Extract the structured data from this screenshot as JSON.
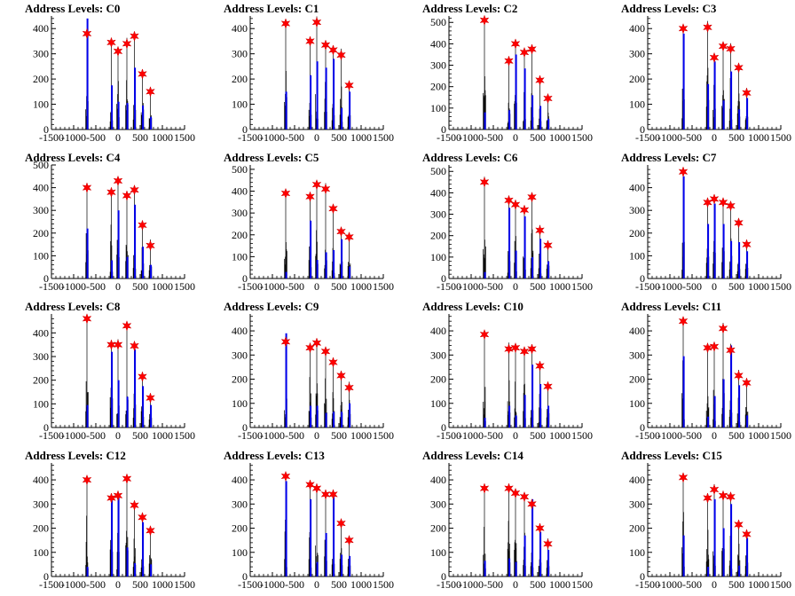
{
  "chart_data": [
    {
      "type": "bar",
      "title": "Address Levels: C0",
      "xlim": [
        -1500,
        1500
      ],
      "ylim": [
        0,
        450
      ],
      "x_ticks": [
        -1500,
        -1000,
        -500,
        0,
        500,
        1000,
        1500
      ],
      "y_ticks": [
        0,
        100,
        200,
        300,
        400
      ],
      "peaks": [
        {
          "x": -700,
          "y": 380,
          "blue": 440
        },
        {
          "x": -150,
          "y": 345,
          "blue": 175
        },
        {
          "x": 0,
          "y": 310,
          "blue": 110
        },
        {
          "x": 200,
          "y": 340,
          "blue": 105
        },
        {
          "x": 370,
          "y": 370,
          "blue": 245
        },
        {
          "x": 550,
          "y": 220,
          "blue": 95
        },
        {
          "x": 730,
          "y": 150,
          "blue": 50
        }
      ]
    },
    {
      "type": "bar",
      "title": "Address Levels: C1",
      "xlim": [
        -1500,
        1500
      ],
      "ylim": [
        0,
        450
      ],
      "x_ticks": [
        -1500,
        -1000,
        -500,
        0,
        500,
        1000,
        1500
      ],
      "y_ticks": [
        0,
        100,
        200,
        300,
        400
      ],
      "peaks": [
        {
          "x": -700,
          "y": 420,
          "blue": 150
        },
        {
          "x": -150,
          "y": 350,
          "blue": 215
        },
        {
          "x": 0,
          "y": 425,
          "blue": 270
        },
        {
          "x": 200,
          "y": 335,
          "blue": 245
        },
        {
          "x": 370,
          "y": 315,
          "blue": 280
        },
        {
          "x": 550,
          "y": 295,
          "blue": 85
        },
        {
          "x": 730,
          "y": 175,
          "blue": 150
        }
      ]
    },
    {
      "type": "bar",
      "title": "Address Levels: C2",
      "xlim": [
        -1500,
        1500
      ],
      "ylim": [
        0,
        530
      ],
      "x_ticks": [
        -1500,
        -1000,
        -500,
        0,
        500,
        1000,
        1500
      ],
      "y_ticks": [
        0,
        100,
        200,
        300,
        400,
        500
      ],
      "peaks": [
        {
          "x": -700,
          "y": 510,
          "blue": 80
        },
        {
          "x": -150,
          "y": 320,
          "blue": 90
        },
        {
          "x": 0,
          "y": 400,
          "blue": 350
        },
        {
          "x": 200,
          "y": 360,
          "blue": 285
        },
        {
          "x": 370,
          "y": 375,
          "blue": 160
        },
        {
          "x": 550,
          "y": 230,
          "blue": 110
        },
        {
          "x": 730,
          "y": 145,
          "blue": 50
        }
      ]
    },
    {
      "type": "bar",
      "title": "Address Levels: C3",
      "xlim": [
        -1500,
        1500
      ],
      "ylim": [
        0,
        450
      ],
      "x_ticks": [
        -1500,
        -1000,
        -500,
        0,
        500,
        1000,
        1500
      ],
      "y_ticks": [
        0,
        100,
        200,
        300,
        400
      ],
      "peaks": [
        {
          "x": -700,
          "y": 400,
          "blue": 380
        },
        {
          "x": -150,
          "y": 405,
          "blue": 180
        },
        {
          "x": 0,
          "y": 285,
          "blue": 270
        },
        {
          "x": 200,
          "y": 330,
          "blue": 115
        },
        {
          "x": 370,
          "y": 320,
          "blue": 230
        },
        {
          "x": 550,
          "y": 245,
          "blue": 80
        },
        {
          "x": 730,
          "y": 145,
          "blue": 125
        }
      ]
    },
    {
      "type": "bar",
      "title": "Address Levels: C4",
      "xlim": [
        -1500,
        1500
      ],
      "ylim": [
        0,
        500
      ],
      "x_ticks": [
        -1500,
        -1000,
        -500,
        0,
        500,
        1000,
        1500
      ],
      "y_ticks": [
        0,
        100,
        200,
        300,
        400,
        500
      ],
      "peaks": [
        {
          "x": -700,
          "y": 400,
          "blue": 220
        },
        {
          "x": -150,
          "y": 380,
          "blue": 80
        },
        {
          "x": 0,
          "y": 430,
          "blue": 300
        },
        {
          "x": 200,
          "y": 365,
          "blue": 95
        },
        {
          "x": 370,
          "y": 390,
          "blue": 325
        },
        {
          "x": 550,
          "y": 235,
          "blue": 140
        },
        {
          "x": 730,
          "y": 145,
          "blue": 60
        }
      ]
    },
    {
      "type": "bar",
      "title": "Address Levels: C5",
      "xlim": [
        -1500,
        1500
      ],
      "ylim": [
        0,
        520
      ],
      "x_ticks": [
        -1500,
        -1000,
        -500,
        0,
        500,
        1000,
        1500
      ],
      "y_ticks": [
        0,
        100,
        200,
        300,
        400,
        500
      ],
      "peaks": [
        {
          "x": -700,
          "y": 390,
          "blue": 30
        },
        {
          "x": -150,
          "y": 375,
          "blue": 265
        },
        {
          "x": 0,
          "y": 430,
          "blue": 85
        },
        {
          "x": 200,
          "y": 410,
          "blue": 120
        },
        {
          "x": 370,
          "y": 320,
          "blue": 130
        },
        {
          "x": 550,
          "y": 215,
          "blue": 180
        },
        {
          "x": 730,
          "y": 190,
          "blue": 55
        }
      ]
    },
    {
      "type": "bar",
      "title": "Address Levels: C6",
      "xlim": [
        -1500,
        1500
      ],
      "ylim": [
        0,
        530
      ],
      "x_ticks": [
        -1500,
        -1000,
        -500,
        0,
        500,
        1000,
        1500
      ],
      "y_ticks": [
        0,
        100,
        200,
        300,
        400,
        500
      ],
      "peaks": [
        {
          "x": -700,
          "y": 450,
          "blue": 30
        },
        {
          "x": -150,
          "y": 365,
          "blue": 330
        },
        {
          "x": 0,
          "y": 345,
          "blue": 130
        },
        {
          "x": 200,
          "y": 320,
          "blue": 290
        },
        {
          "x": 370,
          "y": 380,
          "blue": 100
        },
        {
          "x": 550,
          "y": 225,
          "blue": 185
        },
        {
          "x": 730,
          "y": 155,
          "blue": 80
        }
      ]
    },
    {
      "type": "bar",
      "title": "Address Levels: C7",
      "xlim": [
        -1500,
        1500
      ],
      "ylim": [
        0,
        500
      ],
      "x_ticks": [
        -1500,
        -1000,
        -500,
        0,
        500,
        1000,
        1500
      ],
      "y_ticks": [
        0,
        100,
        200,
        300,
        400
      ],
      "peaks": [
        {
          "x": -700,
          "y": 470,
          "blue": 450
        },
        {
          "x": -150,
          "y": 335,
          "blue": 240
        },
        {
          "x": 0,
          "y": 350,
          "blue": 330
        },
        {
          "x": 200,
          "y": 335,
          "blue": 240
        },
        {
          "x": 370,
          "y": 320,
          "blue": 165
        },
        {
          "x": 550,
          "y": 245,
          "blue": 160
        },
        {
          "x": 730,
          "y": 150,
          "blue": 120
        }
      ]
    },
    {
      "type": "bar",
      "title": "Address Levels: C8",
      "xlim": [
        -1500,
        1500
      ],
      "ylim": [
        0,
        480
      ],
      "x_ticks": [
        -1500,
        -1000,
        -500,
        0,
        500,
        1000,
        1500
      ],
      "y_ticks": [
        0,
        100,
        200,
        300,
        400
      ],
      "peaks": [
        {
          "x": -700,
          "y": 460,
          "blue": 95
        },
        {
          "x": -150,
          "y": 350,
          "blue": 320
        },
        {
          "x": 0,
          "y": 350,
          "blue": 200
        },
        {
          "x": 200,
          "y": 430,
          "blue": 130
        },
        {
          "x": 370,
          "y": 345,
          "blue": 330
        },
        {
          "x": 550,
          "y": 215,
          "blue": 175
        },
        {
          "x": 730,
          "y": 125,
          "blue": 95
        }
      ]
    },
    {
      "type": "bar",
      "title": "Address Levels: C9",
      "xlim": [
        -1500,
        1500
      ],
      "ylim": [
        0,
        470
      ],
      "x_ticks": [
        -1500,
        -1000,
        -500,
        0,
        500,
        1000,
        1500
      ],
      "y_ticks": [
        0,
        100,
        200,
        300,
        400
      ],
      "peaks": [
        {
          "x": -700,
          "y": 355,
          "blue": 390
        },
        {
          "x": -150,
          "y": 330,
          "blue": 90
        },
        {
          "x": 0,
          "y": 350,
          "blue": 90
        },
        {
          "x": 200,
          "y": 315,
          "blue": 60
        },
        {
          "x": 370,
          "y": 270,
          "blue": 65
        },
        {
          "x": 550,
          "y": 215,
          "blue": 65
        },
        {
          "x": 730,
          "y": 165,
          "blue": 100
        }
      ]
    },
    {
      "type": "bar",
      "title": "Address Levels: C10",
      "xlim": [
        -1500,
        1500
      ],
      "ylim": [
        0,
        470
      ],
      "x_ticks": [
        -1500,
        -1000,
        -500,
        0,
        500,
        1000,
        1500
      ],
      "y_ticks": [
        0,
        100,
        200,
        300,
        400
      ],
      "peaks": [
        {
          "x": -700,
          "y": 385,
          "blue": 40
        },
        {
          "x": -150,
          "y": 325,
          "blue": 90
        },
        {
          "x": 0,
          "y": 330,
          "blue": 50
        },
        {
          "x": 200,
          "y": 315,
          "blue": 135
        },
        {
          "x": 370,
          "y": 325,
          "blue": 260
        },
        {
          "x": 550,
          "y": 255,
          "blue": 180
        },
        {
          "x": 730,
          "y": 170,
          "blue": 90
        }
      ]
    },
    {
      "type": "bar",
      "title": "Address Levels: C11",
      "xlim": [
        -1500,
        1500
      ],
      "ylim": [
        0,
        470
      ],
      "x_ticks": [
        -1500,
        -1000,
        -500,
        0,
        500,
        1000,
        1500
      ],
      "y_ticks": [
        0,
        100,
        200,
        300,
        400
      ],
      "peaks": [
        {
          "x": -700,
          "y": 440,
          "blue": 295
        },
        {
          "x": -150,
          "y": 330,
          "blue": 45
        },
        {
          "x": 0,
          "y": 335,
          "blue": 130
        },
        {
          "x": 200,
          "y": 410,
          "blue": 200
        },
        {
          "x": 370,
          "y": 320,
          "blue": 340
        },
        {
          "x": 550,
          "y": 215,
          "blue": 175
        },
        {
          "x": 730,
          "y": 185,
          "blue": 50
        }
      ]
    },
    {
      "type": "bar",
      "title": "Address Levels: C12",
      "xlim": [
        -1500,
        1500
      ],
      "ylim": [
        0,
        470
      ],
      "x_ticks": [
        -1500,
        -1000,
        -500,
        0,
        500,
        1000,
        1500
      ],
      "y_ticks": [
        0,
        100,
        200,
        300,
        400
      ],
      "peaks": [
        {
          "x": -700,
          "y": 400,
          "blue": 40
        },
        {
          "x": -150,
          "y": 325,
          "blue": 315
        },
        {
          "x": 0,
          "y": 335,
          "blue": 330
        },
        {
          "x": 200,
          "y": 405,
          "blue": 120
        },
        {
          "x": 370,
          "y": 295,
          "blue": 55
        },
        {
          "x": 550,
          "y": 245,
          "blue": 225
        },
        {
          "x": 730,
          "y": 190,
          "blue": 50
        }
      ]
    },
    {
      "type": "bar",
      "title": "Address Levels: C13",
      "xlim": [
        -1500,
        1500
      ],
      "ylim": [
        0,
        470
      ],
      "x_ticks": [
        -1500,
        -1000,
        -500,
        0,
        500,
        1000,
        1500
      ],
      "y_ticks": [
        0,
        100,
        200,
        300,
        400
      ],
      "peaks": [
        {
          "x": -700,
          "y": 415,
          "blue": 395
        },
        {
          "x": -150,
          "y": 380,
          "blue": 320
        },
        {
          "x": 0,
          "y": 365,
          "blue": 60
        },
        {
          "x": 200,
          "y": 340,
          "blue": 180
        },
        {
          "x": 370,
          "y": 340,
          "blue": 330
        },
        {
          "x": 550,
          "y": 220,
          "blue": 90
        },
        {
          "x": 730,
          "y": 150,
          "blue": 85
        }
      ]
    },
    {
      "type": "bar",
      "title": "Address Levels: C14",
      "xlim": [
        -1500,
        1500
      ],
      "ylim": [
        0,
        470
      ],
      "x_ticks": [
        -1500,
        -1000,
        -500,
        0,
        500,
        1000,
        1500
      ],
      "y_ticks": [
        0,
        100,
        200,
        300,
        400
      ],
      "peaks": [
        {
          "x": -700,
          "y": 365,
          "blue": 65
        },
        {
          "x": -150,
          "y": 365,
          "blue": 75
        },
        {
          "x": 0,
          "y": 345,
          "blue": 60
        },
        {
          "x": 200,
          "y": 330,
          "blue": 170
        },
        {
          "x": 370,
          "y": 300,
          "blue": 320
        },
        {
          "x": 550,
          "y": 200,
          "blue": 185
        },
        {
          "x": 730,
          "y": 135,
          "blue": 110
        }
      ]
    },
    {
      "type": "bar",
      "title": "Address Levels: C15",
      "xlim": [
        -1500,
        1500
      ],
      "ylim": [
        0,
        470
      ],
      "x_ticks": [
        -1500,
        -1000,
        -500,
        0,
        500,
        1000,
        1500
      ],
      "y_ticks": [
        0,
        100,
        200,
        300,
        400
      ],
      "peaks": [
        {
          "x": -700,
          "y": 410,
          "blue": 170
        },
        {
          "x": -150,
          "y": 325,
          "blue": 40
        },
        {
          "x": 0,
          "y": 360,
          "blue": 320
        },
        {
          "x": 200,
          "y": 335,
          "blue": 200
        },
        {
          "x": 370,
          "y": 330,
          "blue": 300
        },
        {
          "x": 550,
          "y": 215,
          "blue": 45
        },
        {
          "x": 730,
          "y": 175,
          "blue": 160
        }
      ]
    }
  ],
  "colors": {
    "histogram": "#0000ee",
    "marker": "#ff0000",
    "marker_edge": "#cc0000",
    "axis": "#000000"
  }
}
